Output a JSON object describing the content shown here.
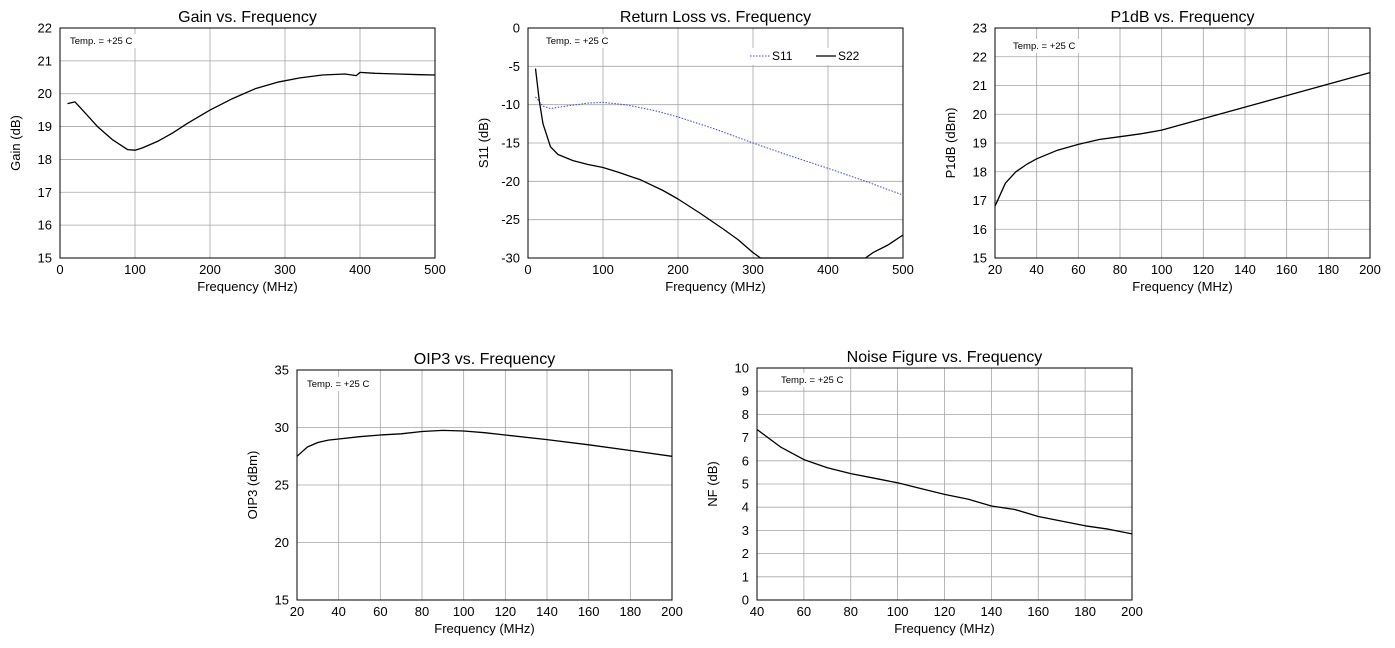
{
  "chart_data": [
    {
      "type": "line",
      "title": "Gain vs. Frequency",
      "xlabel": "Frequency (MHz)",
      "ylabel": "Gain (dB)",
      "annotation": "Temp. = +25  C",
      "xlim": [
        0,
        500
      ],
      "ylim": [
        15,
        22
      ],
      "xticks": [
        0,
        100,
        200,
        300,
        400,
        500
      ],
      "yticks": [
        15,
        16,
        17,
        18,
        19,
        20,
        21,
        22
      ],
      "grid": true,
      "series": [
        {
          "color": "#000000",
          "dashed": false,
          "x": [
            10,
            20,
            30,
            50,
            70,
            90,
            100,
            110,
            130,
            150,
            170,
            200,
            230,
            260,
            290,
            320,
            350,
            380,
            395,
            400,
            420,
            450,
            480,
            500
          ],
          "y": [
            19.7,
            19.75,
            19.5,
            19.0,
            18.6,
            18.3,
            18.28,
            18.35,
            18.55,
            18.8,
            19.1,
            19.5,
            19.85,
            20.15,
            20.35,
            20.48,
            20.57,
            20.6,
            20.55,
            20.65,
            20.62,
            20.6,
            20.58,
            20.57
          ]
        }
      ]
    },
    {
      "type": "line",
      "title": "Return Loss vs. Frequency",
      "xlabel": "Frequency (MHz)",
      "ylabel": "S11 (dB)",
      "annotation": "Temp. = +25  C",
      "xlim": [
        0,
        500
      ],
      "ylim": [
        -30,
        0
      ],
      "xticks": [
        0,
        100,
        200,
        300,
        400,
        500
      ],
      "yticks": [
        -30,
        -25,
        -20,
        -15,
        -10,
        -5,
        0
      ],
      "grid": true,
      "legend_position": "top-right",
      "series": [
        {
          "name": "S11",
          "color": "#3344dd",
          "dashed": true,
          "x": [
            10,
            20,
            30,
            50,
            80,
            100,
            130,
            170,
            200,
            250,
            300,
            350,
            400,
            450,
            500
          ],
          "y": [
            -9.0,
            -10.2,
            -10.5,
            -10.2,
            -9.8,
            -9.7,
            -10.0,
            -10.8,
            -11.6,
            -13.2,
            -15.0,
            -16.7,
            -18.3,
            -20.0,
            -21.8
          ]
        },
        {
          "name": "S22",
          "color": "#000000",
          "dashed": false,
          "x": [
            10,
            15,
            20,
            30,
            40,
            60,
            80,
            100,
            120,
            150,
            180,
            200,
            230,
            260,
            280,
            300,
            310,
            330,
            380,
            450,
            460,
            480,
            500
          ],
          "y": [
            -5.3,
            -9.5,
            -12.5,
            -15.5,
            -16.5,
            -17.3,
            -17.8,
            -18.2,
            -18.8,
            -19.8,
            -21.2,
            -22.3,
            -24.2,
            -26.2,
            -27.6,
            -29.3,
            -30.0,
            -30.0,
            -30.0,
            -30.0,
            -29.3,
            -28.3,
            -27.0
          ]
        }
      ]
    },
    {
      "type": "line",
      "title": "P1dB vs. Frequency",
      "xlabel": "Frequency (MHz)",
      "ylabel": "P1dB (dBm)",
      "annotation": "Temp. = +25  C",
      "xlim": [
        20,
        200
      ],
      "ylim": [
        15,
        23
      ],
      "xticks": [
        20,
        40,
        60,
        80,
        100,
        120,
        140,
        160,
        180,
        200
      ],
      "yticks": [
        15,
        16,
        17,
        18,
        19,
        20,
        21,
        22,
        23
      ],
      "grid": true,
      "series": [
        {
          "color": "#000000",
          "dashed": false,
          "x": [
            20,
            25,
            30,
            35,
            40,
            50,
            60,
            70,
            80,
            90,
            100,
            120,
            140,
            160,
            180,
            200
          ],
          "y": [
            16.8,
            17.6,
            18.0,
            18.25,
            18.45,
            18.75,
            18.95,
            19.12,
            19.22,
            19.32,
            19.45,
            19.85,
            20.25,
            20.65,
            21.05,
            21.45
          ]
        }
      ]
    },
    {
      "type": "line",
      "title": "OIP3 vs. Frequency",
      "xlabel": "Frequency (MHz)",
      "ylabel": "OIP3 (dBm)",
      "annotation": "Temp. = +25  C",
      "xlim": [
        20,
        200
      ],
      "ylim": [
        15,
        35
      ],
      "xticks": [
        20,
        40,
        60,
        80,
        100,
        120,
        140,
        160,
        180,
        200
      ],
      "yticks": [
        15,
        20,
        25,
        30,
        35
      ],
      "grid": true,
      "series": [
        {
          "color": "#000000",
          "dashed": false,
          "x": [
            20,
            25,
            30,
            35,
            40,
            50,
            60,
            70,
            80,
            90,
            100,
            110,
            120,
            140,
            160,
            180,
            200
          ],
          "y": [
            27.5,
            28.3,
            28.7,
            28.9,
            29.0,
            29.2,
            29.35,
            29.45,
            29.65,
            29.75,
            29.7,
            29.55,
            29.35,
            28.95,
            28.5,
            28.0,
            27.5
          ]
        }
      ]
    },
    {
      "type": "line",
      "title": "Noise Figure vs. Frequency",
      "xlabel": "Frequency (MHz)",
      "ylabel": "NF (dB)",
      "annotation": "Temp. = +25  C",
      "xlim": [
        40,
        200
      ],
      "ylim": [
        0,
        10
      ],
      "xticks": [
        40,
        60,
        80,
        100,
        120,
        140,
        160,
        180,
        200
      ],
      "yticks": [
        0,
        1,
        2,
        3,
        4,
        5,
        6,
        7,
        8,
        9,
        10
      ],
      "grid": true,
      "series": [
        {
          "color": "#000000",
          "dashed": false,
          "x": [
            40,
            50,
            60,
            70,
            80,
            90,
            100,
            110,
            120,
            130,
            140,
            150,
            160,
            170,
            180,
            190,
            200
          ],
          "y": [
            7.35,
            6.6,
            6.05,
            5.7,
            5.45,
            5.25,
            5.05,
            4.8,
            4.55,
            4.35,
            4.05,
            3.9,
            3.6,
            3.4,
            3.2,
            3.05,
            2.85
          ]
        }
      ]
    }
  ]
}
